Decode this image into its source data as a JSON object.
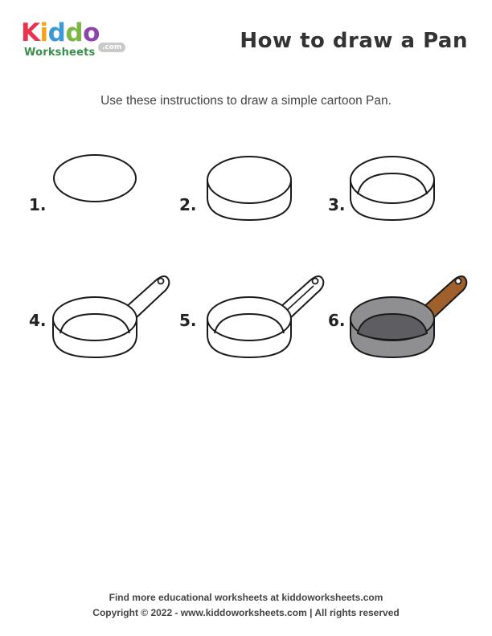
{
  "logo": {
    "word_letters": [
      "K",
      "i",
      "d",
      "d",
      "o"
    ],
    "letter_colors": [
      "#e8344e",
      "#f7a21b",
      "#3a9ad9",
      "#7bb843",
      "#8e44ad"
    ],
    "sub": "Worksheets",
    "com": ".com"
  },
  "header": {
    "title": "How to draw a Pan"
  },
  "instructions": "Use these instructions to draw a simple cartoon Pan.",
  "steps": [
    {
      "label": "1."
    },
    {
      "label": "2."
    },
    {
      "label": "3."
    },
    {
      "label": "4."
    },
    {
      "label": "5."
    },
    {
      "label": "6."
    }
  ],
  "colors": {
    "outline": "#1a1a1a",
    "pan_body": "#8f8f92",
    "pan_inside": "#5e5e62",
    "handle_wood": "#a0602b"
  },
  "footer": {
    "line1": "Find more educational worksheets at kiddoworksheets.com",
    "line2": "Copyright © 2022 - www.kiddoworksheets.com  |  All rights reserved"
  }
}
